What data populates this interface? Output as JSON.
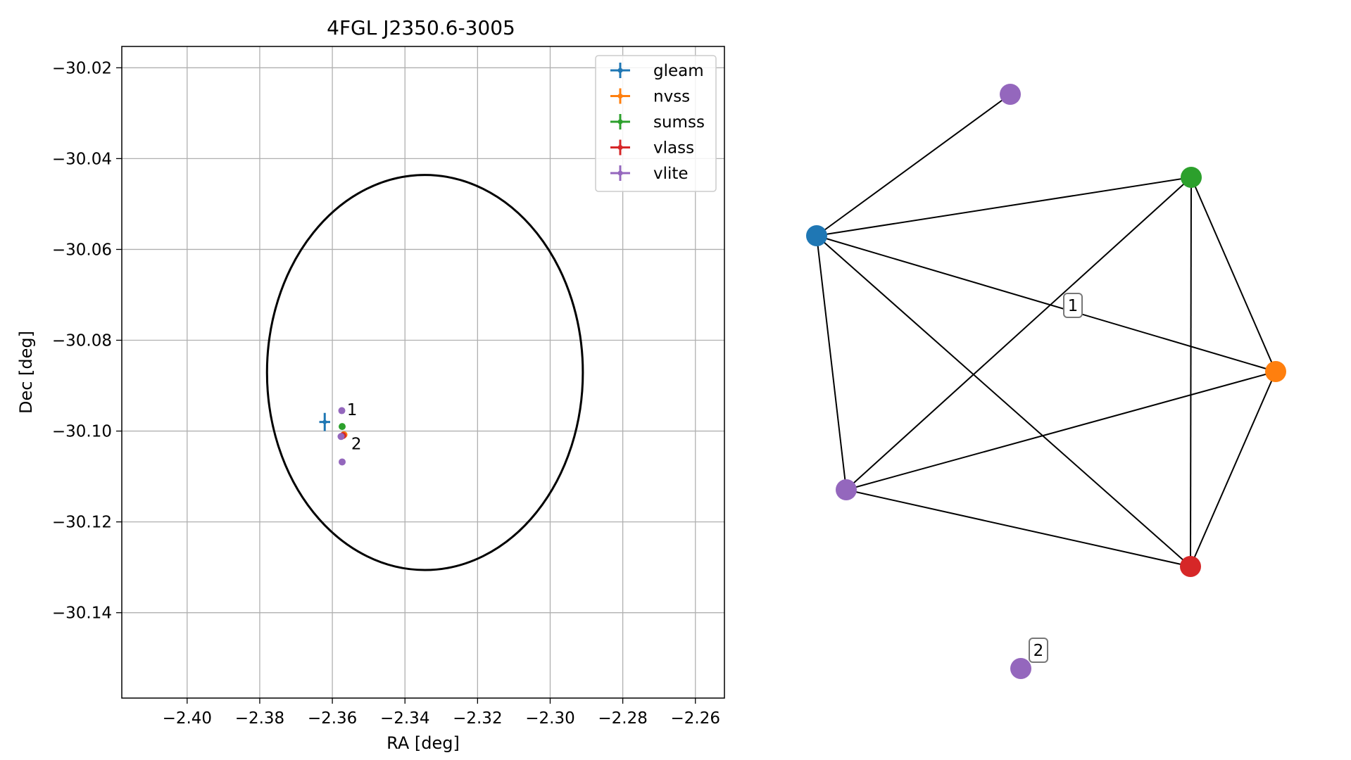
{
  "chart_data": [
    {
      "type": "scatter",
      "title": "4FGL J2350.6-3005",
      "xlabel": "RA [deg]",
      "ylabel": "Dec [deg]",
      "xlim": [
        -2.418,
        -2.252
      ],
      "ylim": [
        -30.1588,
        -30.0153
      ],
      "x_ticks": [
        -2.4,
        -2.38,
        -2.36,
        -2.34,
        -2.32,
        -2.3,
        -2.28,
        -2.26
      ],
      "x_tick_labels": [
        "−2.40",
        "−2.38",
        "−2.36",
        "−2.34",
        "−2.32",
        "−2.30",
        "−2.28",
        "−2.26"
      ],
      "y_ticks": [
        -30.02,
        -30.04,
        -30.06,
        -30.08,
        -30.1,
        -30.12,
        -30.14
      ],
      "y_tick_labels": [
        "−30.02",
        "−30.04",
        "−30.06",
        "−30.08",
        "−30.10",
        "−30.12",
        "−30.14"
      ],
      "grid": true,
      "legend_position": "top-right",
      "circle": {
        "center_ra": -2.3345,
        "center_dec": -30.0871,
        "radius_deg": 0.0435
      },
      "series": [
        {
          "name": "gleam",
          "color": "#1f77b4",
          "points": [
            {
              "ra": -2.3621,
              "dec": -30.098,
              "ra_err": 0.0015,
              "dec_err": 0.002
            }
          ]
        },
        {
          "name": "nvss",
          "color": "#ff7f0e",
          "points": [
            {
              "ra": -2.3568,
              "dec": -30.1008,
              "ra_err": 0.0001,
              "dec_err": 0.0001
            }
          ]
        },
        {
          "name": "sumss",
          "color": "#2ca02c",
          "points": [
            {
              "ra": -2.3573,
              "dec": -30.099,
              "ra_err": 0.0001,
              "dec_err": 0.0001
            }
          ]
        },
        {
          "name": "vlass",
          "color": "#d62728",
          "points": [
            {
              "ra": -2.3571,
              "dec": -30.101,
              "ra_err": 0.0001,
              "dec_err": 0.0001
            }
          ]
        },
        {
          "name": "vlite",
          "color": "#9467bd",
          "points": [
            {
              "ra": -2.3574,
              "dec": -30.0955,
              "ra_err": 0.0001,
              "dec_err": 0.0001
            },
            {
              "ra": -2.3576,
              "dec": -30.1012,
              "ra_err": 0.0001,
              "dec_err": 0.0001
            },
            {
              "ra": -2.3573,
              "dec": -30.1068,
              "ra_err": 0.0001,
              "dec_err": 0.0001
            }
          ]
        }
      ],
      "annotations": [
        {
          "text": "1",
          "ra": -2.356,
          "dec": -30.0965
        },
        {
          "text": "2",
          "ra": -2.3548,
          "dec": -30.104
        }
      ]
    },
    {
      "type": "network",
      "nodes": [
        {
          "id": "vlite_a",
          "color": "#9467bd"
        },
        {
          "id": "sumss",
          "color": "#2ca02c"
        },
        {
          "id": "gleam",
          "color": "#1f77b4"
        },
        {
          "id": "nvss",
          "color": "#ff7f0e"
        },
        {
          "id": "vlite_b",
          "color": "#9467bd"
        },
        {
          "id": "vlass",
          "color": "#d62728"
        },
        {
          "id": "vlite_c",
          "color": "#9467bd"
        }
      ],
      "edges": [
        [
          "gleam",
          "vlite_a"
        ],
        [
          "gleam",
          "sumss"
        ],
        [
          "gleam",
          "nvss"
        ],
        [
          "gleam",
          "vlite_b"
        ],
        [
          "gleam",
          "vlass"
        ],
        [
          "sumss",
          "nvss"
        ],
        [
          "sumss",
          "vlite_b"
        ],
        [
          "sumss",
          "vlass"
        ],
        [
          "nvss",
          "vlite_b"
        ],
        [
          "nvss",
          "vlass"
        ],
        [
          "vlite_b",
          "vlass"
        ]
      ],
      "cluster_labels": [
        {
          "text": "1"
        },
        {
          "text": "2"
        }
      ]
    }
  ]
}
